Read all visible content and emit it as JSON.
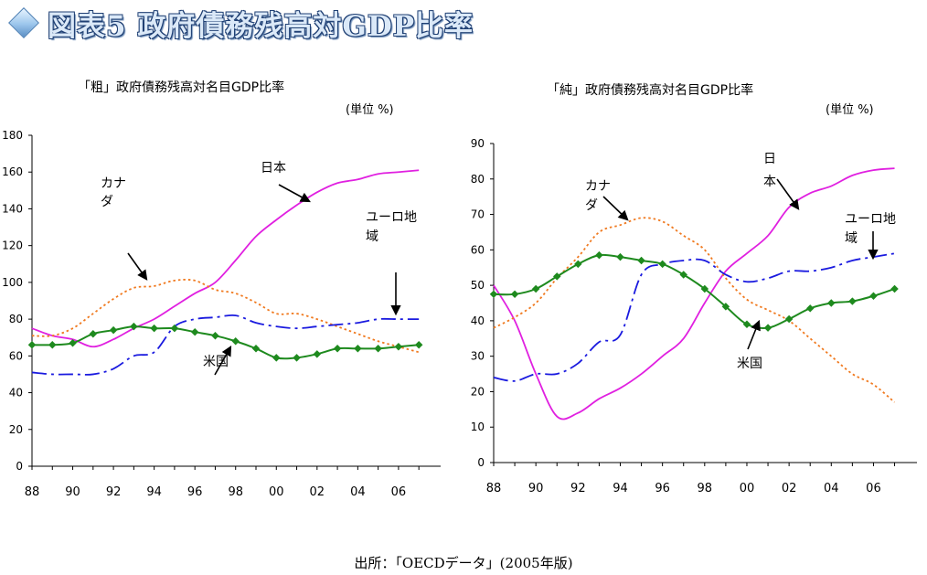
{
  "header": {
    "title": "図表5 政府債務残高対GDP比率"
  },
  "source": "出所：「OECDデータ」(2005年版)",
  "chart_data": [
    {
      "type": "line",
      "title": "「粗」政府債務残高対名目GDP比率",
      "unit": "(単位 %)",
      "x_ticks": [
        "88",
        "90",
        "92",
        "94",
        "96",
        "98",
        "00",
        "02",
        "04",
        "06"
      ],
      "ylim": [
        0,
        180
      ],
      "y_ticks": [
        0,
        20,
        40,
        60,
        80,
        100,
        120,
        140,
        160,
        180
      ],
      "xlim": [
        1988,
        2007.8
      ],
      "series": [
        {
          "name": "日本",
          "color": "#e020e0",
          "style": "solid",
          "markers": false,
          "x": [
            1988,
            1989,
            1990,
            1991,
            1992,
            1993,
            1994,
            1995,
            1996,
            1997,
            1998,
            1999,
            2000,
            2001,
            2002,
            2003,
            2004,
            2005,
            2006,
            2007
          ],
          "values": [
            75,
            71,
            69,
            65,
            69,
            75,
            80,
            87,
            94,
            100,
            112,
            125,
            134,
            142,
            149,
            154,
            156,
            159,
            160,
            161
          ]
        },
        {
          "name": "カナダ",
          "color": "#f07a20",
          "style": "dot",
          "markers": false,
          "x": [
            1988,
            1989,
            1990,
            1991,
            1992,
            1993,
            1994,
            1995,
            1996,
            1997,
            1998,
            1999,
            2000,
            2001,
            2002,
            2003,
            2004,
            2005,
            2006,
            2007
          ],
          "values": [
            71,
            71,
            75,
            83,
            91,
            97,
            98,
            101,
            101,
            96,
            94,
            89,
            83,
            83,
            80,
            76,
            72,
            68,
            65,
            62
          ]
        },
        {
          "name": "ユーロ地域",
          "color": "#1a1adf",
          "style": "dashdot",
          "markers": false,
          "x": [
            1988,
            1989,
            1990,
            1991,
            1992,
            1993,
            1994,
            1995,
            1996,
            1997,
            1998,
            1999,
            2000,
            2001,
            2002,
            2003,
            2004,
            2005,
            2006,
            2007
          ],
          "values": [
            51,
            50,
            50,
            50,
            53,
            60,
            62,
            76,
            80,
            81,
            82,
            78,
            76,
            75,
            76,
            77,
            78,
            80,
            80,
            80
          ]
        },
        {
          "name": "米国",
          "color": "#1e8a1e",
          "style": "solid",
          "markers": true,
          "x": [
            1988,
            1989,
            1990,
            1991,
            1992,
            1993,
            1994,
            1995,
            1996,
            1997,
            1998,
            1999,
            2000,
            2001,
            2002,
            2003,
            2004,
            2005,
            2006,
            2007
          ],
          "values": [
            66,
            66,
            67,
            72,
            74,
            76,
            75,
            75,
            73,
            71,
            68,
            64,
            59,
            59,
            61,
            64,
            64,
            64,
            65,
            66
          ]
        }
      ],
      "annotations": [
        {
          "text": [
            "日本"
          ],
          "series": "日本"
        },
        {
          "text": [
            "カナ",
            "ダ"
          ],
          "series": "カナダ"
        },
        {
          "text": [
            "ユーロ地",
            "域"
          ],
          "series": "ユーロ地域"
        },
        {
          "text": [
            "米国"
          ],
          "series": "米国"
        }
      ]
    },
    {
      "type": "line",
      "title": "「純」政府債務残高対名目GDP比率",
      "unit": "(単位 %)",
      "x_ticks": [
        "88",
        "90",
        "92",
        "94",
        "96",
        "98",
        "00",
        "02",
        "04",
        "06"
      ],
      "ylim": [
        0,
        90
      ],
      "y_ticks": [
        0,
        10,
        20,
        30,
        40,
        50,
        60,
        70,
        80,
        90
      ],
      "xlim": [
        1988,
        2007.8
      ],
      "series": [
        {
          "name": "日本",
          "color": "#e020e0",
          "style": "solid",
          "markers": false,
          "x": [
            1988,
            1989,
            1990,
            1991,
            1992,
            1993,
            1994,
            1995,
            1996,
            1997,
            1998,
            1999,
            2000,
            2001,
            2002,
            2003,
            2004,
            2005,
            2006,
            2007
          ],
          "values": [
            50,
            40,
            25,
            13,
            14,
            18,
            21,
            25,
            30,
            35,
            45,
            54,
            59,
            64,
            72,
            76,
            78,
            81,
            82.5,
            83
          ]
        },
        {
          "name": "カナダ",
          "color": "#f07a20",
          "style": "dot",
          "markers": false,
          "x": [
            1988,
            1989,
            1990,
            1991,
            1992,
            1993,
            1994,
            1995,
            1996,
            1997,
            1998,
            1999,
            2000,
            2001,
            2002,
            2003,
            2004,
            2005,
            2006,
            2007
          ],
          "values": [
            38,
            41,
            45,
            52,
            58,
            65,
            67,
            69,
            68,
            64,
            60,
            52,
            46,
            43,
            40,
            35,
            30,
            25,
            22,
            17
          ]
        },
        {
          "name": "ユーロ地域",
          "color": "#1a1adf",
          "style": "dashdot",
          "markers": false,
          "x": [
            1988,
            1989,
            1990,
            1991,
            1992,
            1993,
            1994,
            1995,
            1996,
            1997,
            1998,
            1999,
            2000,
            2001,
            2002,
            2003,
            2004,
            2005,
            2006,
            2007
          ],
          "values": [
            24,
            23,
            25,
            25,
            28,
            34,
            36,
            53,
            56,
            57,
            57,
            53,
            51,
            52,
            54,
            54,
            55,
            57,
            58,
            59
          ]
        },
        {
          "name": "米国",
          "color": "#1e8a1e",
          "style": "solid",
          "markers": true,
          "x": [
            1988,
            1989,
            1990,
            1991,
            1992,
            1993,
            1994,
            1995,
            1996,
            1997,
            1998,
            1999,
            2000,
            2001,
            2002,
            2003,
            2004,
            2005,
            2006,
            2007
          ],
          "values": [
            47.5,
            47.5,
            49,
            52.5,
            56,
            58.5,
            58,
            57,
            56,
            53,
            49,
            44,
            39,
            38,
            40.5,
            43.5,
            45,
            45.5,
            47,
            49
          ]
        }
      ],
      "annotations": [
        {
          "text": [
            "日",
            "本"
          ],
          "series": "日本"
        },
        {
          "text": [
            "カナ",
            "ダ"
          ],
          "series": "カナダ"
        },
        {
          "text": [
            "ユーロ地",
            "域"
          ],
          "series": "ユーロ地域"
        },
        {
          "text": [
            "米国"
          ],
          "series": "米国"
        }
      ]
    }
  ]
}
